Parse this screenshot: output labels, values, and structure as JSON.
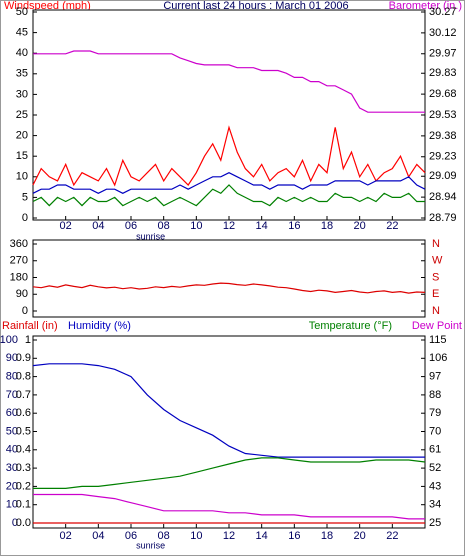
{
  "chart_data": [
    {
      "type": "line",
      "title": "Current last 24 hours : March 01 2006",
      "y_label": "Windspeed (mph)",
      "y2_label": "Barometer (in.)",
      "xlim": [
        0,
        24
      ],
      "xticks": [
        {
          "value": 2,
          "label": "02"
        },
        {
          "value": 4,
          "label": "04"
        },
        {
          "value": 6,
          "label": "06"
        },
        {
          "value": 8,
          "label": "08"
        },
        {
          "value": 10,
          "label": "10"
        },
        {
          "value": 12,
          "label": "12"
        },
        {
          "value": 14,
          "label": "14"
        },
        {
          "value": 16,
          "label": "16"
        },
        {
          "value": 18,
          "label": "18"
        },
        {
          "value": 20,
          "label": "20"
        },
        {
          "value": 22,
          "label": "22"
        }
      ],
      "annotation": {
        "text": "sunrise",
        "x": 7.2
      },
      "ylim": [
        0,
        50
      ],
      "yticks": [
        0,
        5,
        10,
        15,
        20,
        25,
        30,
        35,
        40,
        45,
        50
      ],
      "y2lim": [
        28.79,
        30.27
      ],
      "y2ticks": [
        28.79,
        28.94,
        29.09,
        29.23,
        29.38,
        29.53,
        29.68,
        29.83,
        29.97,
        30.12,
        30.27
      ],
      "x": [
        0,
        0.5,
        1,
        1.5,
        2,
        2.5,
        3,
        3.5,
        4,
        4.5,
        5,
        5.5,
        6,
        6.5,
        7,
        7.5,
        8,
        8.5,
        9,
        9.5,
        10,
        10.5,
        11,
        11.5,
        12,
        12.5,
        13,
        13.5,
        14,
        14.5,
        15,
        15.5,
        16,
        16.5,
        17,
        17.5,
        18,
        18.5,
        19,
        19.5,
        20,
        20.5,
        21,
        21.5,
        22,
        22.5,
        23,
        23.5,
        24
      ],
      "series": [
        {
          "color": "#ff0000",
          "values": [
            8,
            12,
            10,
            9,
            13,
            8,
            11,
            10,
            9,
            12,
            8,
            14,
            10,
            9,
            11,
            13,
            9,
            12,
            10,
            8,
            11,
            15,
            18,
            14,
            22,
            16,
            12,
            10,
            13,
            9,
            11,
            12,
            10,
            14,
            9,
            13,
            11,
            22,
            12,
            16,
            10,
            13,
            9,
            11,
            12,
            15,
            10,
            13,
            11
          ]
        },
        {
          "color": "#008000",
          "values": [
            4,
            5,
            3,
            5,
            4,
            5,
            3,
            5,
            4,
            4,
            5,
            3,
            4,
            5,
            4,
            5,
            3,
            4,
            5,
            4,
            3,
            5,
            7,
            6,
            8,
            6,
            5,
            4,
            4,
            3,
            5,
            4,
            5,
            4,
            5,
            4,
            4,
            6,
            5,
            5,
            4,
            5,
            4,
            6,
            5,
            5,
            6,
            4,
            4
          ]
        },
        {
          "color": "#0000c0",
          "values": [
            6,
            7,
            7,
            8,
            8,
            7,
            7,
            7,
            6,
            7,
            7,
            6,
            7,
            7,
            7,
            7,
            7,
            7,
            8,
            7,
            8,
            9,
            10,
            10,
            11,
            10,
            9,
            8,
            8,
            7,
            8,
            8,
            8,
            7,
            8,
            8,
            8,
            9,
            9,
            9,
            9,
            8,
            9,
            9,
            9,
            9,
            10,
            8,
            7
          ]
        },
        {
          "color": "#cc00cc",
          "axis": "y2",
          "values": [
            29.97,
            29.97,
            29.97,
            29.97,
            29.97,
            29.99,
            29.99,
            29.99,
            29.97,
            29.97,
            29.97,
            29.97,
            29.97,
            29.97,
            29.97,
            29.97,
            29.97,
            29.97,
            29.94,
            29.92,
            29.9,
            29.89,
            29.89,
            29.89,
            29.89,
            29.87,
            29.87,
            29.87,
            29.85,
            29.85,
            29.85,
            29.83,
            29.8,
            29.8,
            29.77,
            29.77,
            29.74,
            29.74,
            29.71,
            29.68,
            29.58,
            29.55,
            29.55,
            29.55,
            29.55,
            29.55,
            29.55,
            29.55,
            29.55
          ]
        }
      ]
    },
    {
      "type": "line",
      "xlim": [
        0,
        24
      ],
      "ylim": [
        0,
        360
      ],
      "yticks": [
        0,
        90,
        180,
        270,
        360
      ],
      "y2lim": [
        0,
        360
      ],
      "y2ticks": [
        {
          "value": 0,
          "label": "N"
        },
        {
          "value": 90,
          "label": "E"
        },
        {
          "value": 180,
          "label": "S"
        },
        {
          "value": 270,
          "label": "W"
        },
        {
          "value": 360,
          "label": "N"
        }
      ],
      "x": [
        0,
        0.5,
        1,
        1.5,
        2,
        2.5,
        3,
        3.5,
        4,
        4.5,
        5,
        5.5,
        6,
        6.5,
        7,
        7.5,
        8,
        8.5,
        9,
        9.5,
        10,
        10.5,
        11,
        11.5,
        12,
        12.5,
        13,
        13.5,
        14,
        14.5,
        15,
        15.5,
        16,
        16.5,
        17,
        17.5,
        18,
        18.5,
        19,
        19.5,
        20,
        20.5,
        21,
        21.5,
        22,
        22.5,
        23,
        23.5,
        24
      ],
      "series": [
        {
          "color": "#dd0000",
          "values": [
            130,
            125,
            135,
            128,
            140,
            132,
            126,
            138,
            130,
            124,
            128,
            120,
            125,
            118,
            122,
            130,
            126,
            132,
            128,
            135,
            140,
            138,
            145,
            150,
            148,
            142,
            138,
            145,
            140,
            135,
            128,
            125,
            118,
            110,
            105,
            112,
            108,
            100,
            105,
            110,
            102,
            98,
            105,
            108,
            100,
            104,
            96,
            102,
            100
          ]
        }
      ]
    },
    {
      "type": "line",
      "y_label": "Rainfall (in)",
      "yh_label": "Humidity (%)",
      "y2_label": "Temperature (°F)",
      "xlim": [
        0,
        24
      ],
      "xticks": [
        {
          "value": 2,
          "label": "02"
        },
        {
          "value": 4,
          "label": "04"
        },
        {
          "value": 6,
          "label": "06"
        },
        {
          "value": 8,
          "label": "08"
        },
        {
          "value": 10,
          "label": "10"
        },
        {
          "value": 12,
          "label": "12"
        },
        {
          "value": 14,
          "label": "14"
        },
        {
          "value": 16,
          "label": "16"
        },
        {
          "value": 18,
          "label": "18"
        },
        {
          "value": 20,
          "label": "20"
        },
        {
          "value": 22,
          "label": "22"
        }
      ],
      "annotation": {
        "text": "sunrise",
        "x": 7.2
      },
      "ylim": [
        0,
        1
      ],
      "yticks": [
        {
          "value": 0,
          "label": "0.0"
        },
        0.1,
        0.2,
        0.3,
        0.4,
        0.5,
        0.6,
        0.7,
        0.8,
        0.9,
        1
      ],
      "yhlim": [
        0,
        100
      ],
      "yhticks": [
        0,
        10,
        20,
        30,
        40,
        50,
        60,
        70,
        80,
        90,
        100
      ],
      "y2lim": [
        25,
        115
      ],
      "y2ticks": [
        25,
        34,
        43,
        52,
        61,
        70,
        79,
        88,
        97,
        106,
        115
      ],
      "x": [
        0,
        1,
        2,
        3,
        4,
        5,
        6,
        7,
        8,
        9,
        10,
        11,
        12,
        13,
        14,
        15,
        16,
        17,
        18,
        19,
        20,
        21,
        22,
        23,
        24
      ],
      "series": [
        {
          "color": "#dd0000",
          "values": [
            0,
            0,
            0,
            0,
            0,
            0,
            0,
            0,
            0,
            0,
            0,
            0,
            0,
            0,
            0,
            0,
            0,
            0,
            0,
            0,
            0,
            0,
            0,
            0,
            0
          ]
        },
        {
          "color": "#0000c0",
          "axis": "yh",
          "values": [
            86,
            87,
            87,
            87,
            86,
            84,
            80,
            70,
            62,
            56,
            52,
            48,
            42,
            38,
            37,
            36,
            36,
            36,
            36,
            36,
            36,
            36,
            36,
            36,
            36
          ]
        },
        {
          "color": "#008000",
          "axis": "y2",
          "values": [
            42,
            42,
            42,
            43,
            43,
            44,
            45,
            46,
            47,
            48,
            50,
            52,
            54,
            56,
            57,
            57,
            56,
            55,
            55,
            55,
            55,
            56,
            56,
            56,
            55
          ]
        },
        {
          "name": "Dew Point",
          "color": "#cc00cc",
          "axis": "y2",
          "values": [
            39,
            39,
            39,
            39,
            38,
            37,
            35,
            33,
            31,
            31,
            31,
            31,
            30,
            30,
            29,
            29,
            29,
            28,
            28,
            28,
            28,
            28,
            28,
            27,
            27
          ]
        }
      ]
    }
  ]
}
